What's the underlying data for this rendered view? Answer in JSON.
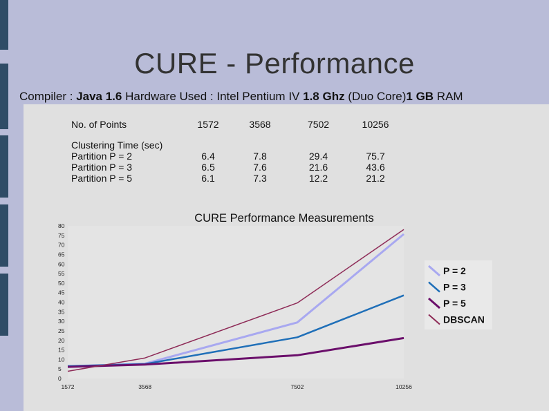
{
  "slide": {
    "title": "CURE - Performance",
    "subtitle_parts": [
      {
        "text": "Compiler : ",
        "bold": false
      },
      {
        "text": "Java 1.6",
        "bold": true
      },
      {
        "text": " Hardware Used : Intel Pentium IV ",
        "bold": false
      },
      {
        "text": "1.8 Ghz",
        "bold": true
      },
      {
        "text": " (Duo Core)",
        "bold": false
      },
      {
        "text": "1 GB",
        "bold": true
      },
      {
        "text": " RAM",
        "bold": false
      }
    ]
  },
  "table": {
    "header_label": "No. of Points",
    "columns": [
      "1572",
      "3568",
      "7502",
      "10256"
    ],
    "section_label": "Clustering Time (sec)",
    "rows": [
      {
        "label": "Partition P = 2",
        "values": [
          "6.4",
          "7.8",
          "29.4",
          "75.7"
        ]
      },
      {
        "label": "Partition P = 3",
        "values": [
          "6.5",
          "7.6",
          "21.6",
          "43.6"
        ]
      },
      {
        "label": "Partition P = 5",
        "values": [
          "6.1",
          "7.3",
          "12.2",
          "21.2"
        ]
      }
    ]
  },
  "chart_data": {
    "type": "line",
    "title": "CURE Performance Measurements",
    "x": [
      "1572",
      "3568",
      "7502",
      "10256"
    ],
    "x_positions": [
      1572,
      3568,
      7502,
      10256
    ],
    "ylim": [
      0,
      80
    ],
    "yticks": [
      "0",
      "5",
      "10",
      "15",
      "20",
      "25",
      "30",
      "35",
      "40",
      "45",
      "50",
      "55",
      "60",
      "65",
      "70",
      "75",
      "80"
    ],
    "grid": false,
    "legend_position": "right",
    "series": [
      {
        "name": "P = 2",
        "values": [
          6.4,
          7.8,
          29.4,
          75.7
        ],
        "color": "#a8a8f0",
        "width": 3
      },
      {
        "name": "P = 3",
        "values": [
          6.5,
          7.6,
          21.6,
          43.6
        ],
        "color": "#1f6fb8",
        "width": 2.5
      },
      {
        "name": "P = 5",
        "values": [
          6.1,
          7.3,
          12.2,
          21.2
        ],
        "color": "#6b0f6b",
        "width": 3
      },
      {
        "name": "DBSCAN",
        "values": [
          3.8,
          10.8,
          39.6,
          78.1
        ],
        "color": "#8e2b57",
        "width": 1.5
      }
    ]
  }
}
